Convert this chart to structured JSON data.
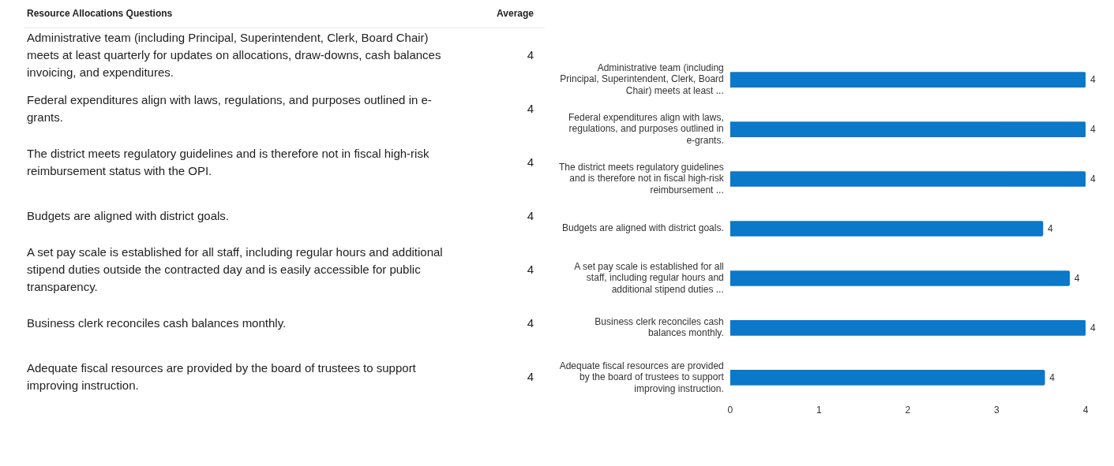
{
  "chart_data": [
    {
      "type": "other",
      "title": "Resource Allocations Questions",
      "ylabel": "Average",
      "data_labels": true,
      "categories": [
        "Administrative team (including Principal, Superintendent, Clerk, Board Chair) meets at least quarterly for updates on allocations, draw-downs, cash balances invoicing, and expenditures.",
        "Federal expenditures align with laws, regulations, and purposes outlined in e-grants.",
        "The district meets regulatory guidelines and is therefore not in fiscal high-risk reimbursement status with the OPI.",
        "Budgets are aligned with district goals.",
        "A set pay scale is established for all staff, including regular hours and additional stipend duties outside the contracted day and is easily accessible for public transparency.",
        "Business clerk reconciles cash balances monthly.",
        "Adequate fiscal resources are provided by the board of trustees to support improving instruction."
      ],
      "values": [
        4,
        4,
        4,
        4,
        4,
        4,
        4
      ]
    },
    {
      "type": "bar",
      "orientation": "horizontal",
      "color": "#0b78c9",
      "categories": [
        "Administrative team (including Principal, Superintendent, Clerk, Board Chair) meets at least ...",
        "Federal expenditures align with laws, regulations, and purposes outlined in e-grants.",
        "The district meets regulatory guidelines and is therefore not in fiscal high-risk reimbursement ...",
        "Budgets are aligned with district goals.",
        "A set pay scale is established for all staff, including regular hours and additional stipend duties ...",
        "Business clerk reconciles cash balances monthly.",
        "Adequate fiscal resources are provided by the board of trustees to support improving instruction."
      ],
      "values": [
        4.0,
        4.0,
        4.0,
        3.52,
        3.82,
        4.0,
        3.54
      ],
      "value_labels": [
        "4",
        "4",
        "4",
        "4",
        "4",
        "4",
        "4"
      ],
      "xlim": [
        0,
        4
      ],
      "xticks": [
        0,
        1,
        2,
        3,
        4
      ],
      "grid": false,
      "legend": false
    }
  ]
}
